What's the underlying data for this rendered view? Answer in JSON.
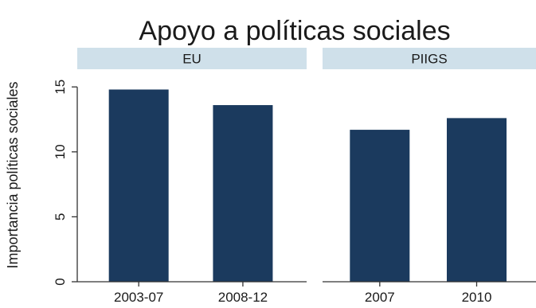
{
  "chart_data": {
    "type": "bar",
    "title": "Apoyo a políticas sociales",
    "ylabel": "Importancia políticas sociales",
    "xlabel": "",
    "ylim": [
      0,
      16.3
    ],
    "yticks": [
      0,
      5,
      10,
      15
    ],
    "grid": false,
    "bar_color": "#1b3a5e",
    "strip_color": "#cfe0ea",
    "panels": [
      {
        "name": "EU",
        "categories": [
          "2003-07",
          "2008-12"
        ],
        "values": [
          14.8,
          13.6
        ]
      },
      {
        "name": "PIIGS",
        "categories": [
          "2007",
          "2010"
        ],
        "values": [
          11.7,
          12.6
        ]
      }
    ]
  }
}
